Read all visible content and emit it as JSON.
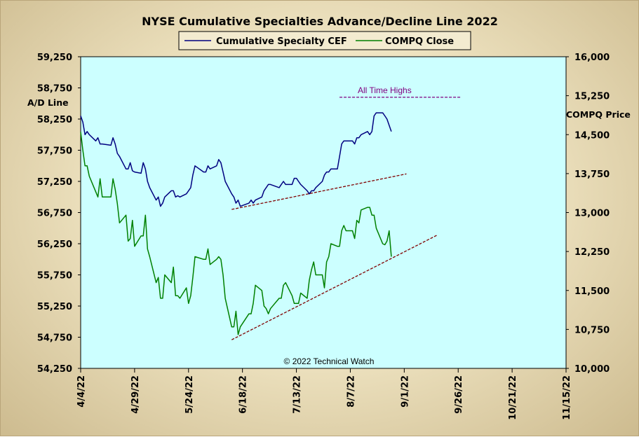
{
  "chart_data": {
    "type": "line",
    "title": "NYSE Cumulative Specialties Advance/Decline Line 2022",
    "ylabel_left": "A/D Line",
    "ylabel_right": "COMPQ Price",
    "ylim_left": [
      54250,
      59250
    ],
    "ylim_right": [
      10000,
      16000
    ],
    "yticks_left": [
      "59,250",
      "58,750",
      "58,250",
      "57,750",
      "57,250",
      "56,750",
      "56,250",
      "55,750",
      "55,250",
      "54,750",
      "54,250"
    ],
    "yticks_right": [
      "16,000",
      "15,250",
      "14,500",
      "13,750",
      "13,000",
      "12,250",
      "11,500",
      "10,750",
      "10,000"
    ],
    "xticks": [
      "4/4/22",
      "4/29/22",
      "5/24/22",
      "6/18/22",
      "7/13/22",
      "8/7/22",
      "9/1/22",
      "9/26/22",
      "10/21/22",
      "11/15/22"
    ],
    "xrange": [
      "2022-04-04",
      "2022-11-15"
    ],
    "grid": false,
    "legend_position": "top",
    "annotations": {
      "all_time_highs": "All Time Highs",
      "copyright": "© 2022 Technical Watch"
    },
    "series": [
      {
        "name": "Cumulative Specialty CEF",
        "axis": "left",
        "color": "#000080",
        "points": [
          [
            "2022-04-04",
            58300
          ],
          [
            "2022-04-05",
            58200
          ],
          [
            "2022-04-06",
            58000
          ],
          [
            "2022-04-07",
            58050
          ],
          [
            "2022-04-08",
            58000
          ],
          [
            "2022-04-11",
            57900
          ],
          [
            "2022-04-12",
            57950
          ],
          [
            "2022-04-13",
            57850
          ],
          [
            "2022-04-14",
            57850
          ],
          [
            "2022-04-18",
            57830
          ],
          [
            "2022-04-19",
            57950
          ],
          [
            "2022-04-20",
            57850
          ],
          [
            "2022-04-21",
            57700
          ],
          [
            "2022-04-22",
            57650
          ],
          [
            "2022-04-25",
            57450
          ],
          [
            "2022-04-26",
            57450
          ],
          [
            "2022-04-27",
            57550
          ],
          [
            "2022-04-28",
            57420
          ],
          [
            "2022-04-29",
            57400
          ],
          [
            "2022-05-02",
            57380
          ],
          [
            "2022-05-03",
            57550
          ],
          [
            "2022-05-04",
            57450
          ],
          [
            "2022-05-05",
            57250
          ],
          [
            "2022-05-06",
            57150
          ],
          [
            "2022-05-09",
            56950
          ],
          [
            "2022-05-10",
            57000
          ],
          [
            "2022-05-11",
            56850
          ],
          [
            "2022-05-12",
            56900
          ],
          [
            "2022-05-13",
            57000
          ],
          [
            "2022-05-16",
            57100
          ],
          [
            "2022-05-17",
            57100
          ],
          [
            "2022-05-18",
            57000
          ],
          [
            "2022-05-19",
            57020
          ],
          [
            "2022-05-20",
            57000
          ],
          [
            "2022-05-23",
            57050
          ],
          [
            "2022-05-24",
            57100
          ],
          [
            "2022-05-25",
            57150
          ],
          [
            "2022-05-26",
            57350
          ],
          [
            "2022-05-27",
            57500
          ],
          [
            "2022-05-31",
            57400
          ],
          [
            "2022-06-01",
            57400
          ],
          [
            "2022-06-02",
            57500
          ],
          [
            "2022-06-03",
            57450
          ],
          [
            "2022-06-06",
            57500
          ],
          [
            "2022-06-07",
            57600
          ],
          [
            "2022-06-08",
            57550
          ],
          [
            "2022-06-09",
            57400
          ],
          [
            "2022-06-10",
            57250
          ],
          [
            "2022-06-13",
            57050
          ],
          [
            "2022-06-14",
            57000
          ],
          [
            "2022-06-15",
            56900
          ],
          [
            "2022-06-16",
            56950
          ],
          [
            "2022-06-17",
            56850
          ],
          [
            "2022-06-21",
            56900
          ],
          [
            "2022-06-22",
            56950
          ],
          [
            "2022-06-23",
            56900
          ],
          [
            "2022-06-24",
            56950
          ],
          [
            "2022-06-27",
            57000
          ],
          [
            "2022-06-28",
            57100
          ],
          [
            "2022-06-29",
            57150
          ],
          [
            "2022-06-30",
            57200
          ],
          [
            "2022-07-01",
            57200
          ],
          [
            "2022-07-05",
            57150
          ],
          [
            "2022-07-06",
            57200
          ],
          [
            "2022-07-07",
            57250
          ],
          [
            "2022-07-08",
            57200
          ],
          [
            "2022-07-11",
            57200
          ],
          [
            "2022-07-12",
            57300
          ],
          [
            "2022-07-13",
            57300
          ],
          [
            "2022-07-14",
            57250
          ],
          [
            "2022-07-15",
            57200
          ],
          [
            "2022-07-18",
            57100
          ],
          [
            "2022-07-19",
            57050
          ],
          [
            "2022-07-20",
            57100
          ],
          [
            "2022-07-21",
            57100
          ],
          [
            "2022-07-22",
            57150
          ],
          [
            "2022-07-25",
            57250
          ],
          [
            "2022-07-26",
            57350
          ],
          [
            "2022-07-27",
            57400
          ],
          [
            "2022-07-28",
            57400
          ],
          [
            "2022-07-29",
            57450
          ],
          [
            "2022-08-01",
            57450
          ],
          [
            "2022-08-02",
            57650
          ],
          [
            "2022-08-03",
            57850
          ],
          [
            "2022-08-04",
            57900
          ],
          [
            "2022-08-05",
            57900
          ],
          [
            "2022-08-08",
            57900
          ],
          [
            "2022-08-09",
            57850
          ],
          [
            "2022-08-10",
            57950
          ],
          [
            "2022-08-11",
            57950
          ],
          [
            "2022-08-12",
            58000
          ],
          [
            "2022-08-15",
            58050
          ],
          [
            "2022-08-16",
            58000
          ],
          [
            "2022-08-17",
            58050
          ],
          [
            "2022-08-18",
            58300
          ],
          [
            "2022-08-19",
            58350
          ],
          [
            "2022-08-22",
            58350
          ],
          [
            "2022-08-23",
            58300
          ],
          [
            "2022-08-24",
            58250
          ],
          [
            "2022-08-25",
            58150
          ],
          [
            "2022-08-26",
            58050
          ]
        ]
      },
      {
        "name": "COMPQ Close",
        "axis": "right",
        "color": "#008000",
        "points": [
          [
            "2022-04-04",
            14550
          ],
          [
            "2022-04-05",
            14200
          ],
          [
            "2022-04-06",
            13900
          ],
          [
            "2022-04-07",
            13900
          ],
          [
            "2022-04-08",
            13700
          ],
          [
            "2022-04-11",
            13400
          ],
          [
            "2022-04-12",
            13300
          ],
          [
            "2022-04-13",
            13650
          ],
          [
            "2022-04-14",
            13300
          ],
          [
            "2022-04-18",
            13300
          ],
          [
            "2022-04-19",
            13650
          ],
          [
            "2022-04-20",
            13450
          ],
          [
            "2022-04-21",
            13170
          ],
          [
            "2022-04-22",
            12800
          ],
          [
            "2022-04-25",
            12950
          ],
          [
            "2022-04-26",
            12450
          ],
          [
            "2022-04-27",
            12500
          ],
          [
            "2022-04-28",
            12850
          ],
          [
            "2022-04-29",
            12350
          ],
          [
            "2022-05-02",
            12550
          ],
          [
            "2022-05-03",
            12550
          ],
          [
            "2022-05-04",
            12950
          ],
          [
            "2022-05-05",
            12300
          ],
          [
            "2022-05-06",
            12150
          ],
          [
            "2022-05-09",
            11650
          ],
          [
            "2022-05-10",
            11750
          ],
          [
            "2022-05-11",
            11350
          ],
          [
            "2022-05-12",
            11350
          ],
          [
            "2022-05-13",
            11800
          ],
          [
            "2022-05-16",
            11650
          ],
          [
            "2022-05-17",
            11950
          ],
          [
            "2022-05-18",
            11400
          ],
          [
            "2022-05-19",
            11400
          ],
          [
            "2022-05-20",
            11350
          ],
          [
            "2022-05-23",
            11550
          ],
          [
            "2022-05-24",
            11250
          ],
          [
            "2022-05-25",
            11400
          ],
          [
            "2022-05-26",
            11750
          ],
          [
            "2022-05-27",
            12150
          ],
          [
            "2022-05-31",
            12100
          ],
          [
            "2022-06-01",
            12100
          ],
          [
            "2022-06-02",
            12300
          ],
          [
            "2022-06-03",
            12000
          ],
          [
            "2022-06-06",
            12100
          ],
          [
            "2022-06-07",
            12150
          ],
          [
            "2022-06-08",
            12100
          ],
          [
            "2022-06-09",
            11800
          ],
          [
            "2022-06-10",
            11350
          ],
          [
            "2022-06-13",
            10800
          ],
          [
            "2022-06-14",
            10800
          ],
          [
            "2022-06-15",
            11100
          ],
          [
            "2022-06-16",
            10650
          ],
          [
            "2022-06-17",
            10800
          ],
          [
            "2022-06-21",
            11050
          ],
          [
            "2022-06-22",
            11050
          ],
          [
            "2022-06-23",
            11250
          ],
          [
            "2022-06-24",
            11600
          ],
          [
            "2022-06-27",
            11500
          ],
          [
            "2022-06-28",
            11200
          ],
          [
            "2022-06-29",
            11150
          ],
          [
            "2022-06-30",
            11050
          ],
          [
            "2022-07-01",
            11150
          ],
          [
            "2022-07-05",
            11350
          ],
          [
            "2022-07-06",
            11350
          ],
          [
            "2022-07-07",
            11600
          ],
          [
            "2022-07-08",
            11650
          ],
          [
            "2022-07-11",
            11400
          ],
          [
            "2022-07-12",
            11250
          ],
          [
            "2022-07-13",
            11250
          ],
          [
            "2022-07-14",
            11250
          ],
          [
            "2022-07-15",
            11450
          ],
          [
            "2022-07-18",
            11350
          ],
          [
            "2022-07-19",
            11700
          ],
          [
            "2022-07-20",
            11900
          ],
          [
            "2022-07-21",
            12050
          ],
          [
            "2022-07-22",
            11800
          ],
          [
            "2022-07-25",
            11800
          ],
          [
            "2022-07-26",
            11550
          ],
          [
            "2022-07-27",
            12050
          ],
          [
            "2022-07-28",
            12150
          ],
          [
            "2022-07-29",
            12400
          ],
          [
            "2022-08-01",
            12350
          ],
          [
            "2022-08-02",
            12350
          ],
          [
            "2022-08-03",
            12650
          ],
          [
            "2022-08-04",
            12750
          ],
          [
            "2022-08-05",
            12650
          ],
          [
            "2022-08-08",
            12650
          ],
          [
            "2022-08-09",
            12500
          ],
          [
            "2022-08-10",
            12850
          ],
          [
            "2022-08-11",
            12800
          ],
          [
            "2022-08-12",
            13050
          ],
          [
            "2022-08-15",
            13100
          ],
          [
            "2022-08-16",
            13100
          ],
          [
            "2022-08-17",
            12950
          ],
          [
            "2022-08-18",
            12950
          ],
          [
            "2022-08-19",
            12700
          ],
          [
            "2022-08-22",
            12400
          ],
          [
            "2022-08-23",
            12380
          ],
          [
            "2022-08-24",
            12450
          ],
          [
            "2022-08-25",
            12650
          ],
          [
            "2022-08-26",
            12150
          ]
        ]
      }
    ],
    "trendlines": [
      {
        "axis": "left",
        "color": "#800000",
        "from": [
          "2022-06-13",
          56800
        ],
        "to": [
          "2022-09-02",
          57370
        ]
      },
      {
        "axis": "right",
        "color": "#800000",
        "from": [
          "2022-06-13",
          10550
        ],
        "to": [
          "2022-09-16",
          12560
        ]
      },
      {
        "axis": "left",
        "color": "#800080",
        "from": [
          "2022-08-02",
          58600
        ],
        "to": [
          "2022-09-27",
          58600
        ]
      }
    ]
  }
}
